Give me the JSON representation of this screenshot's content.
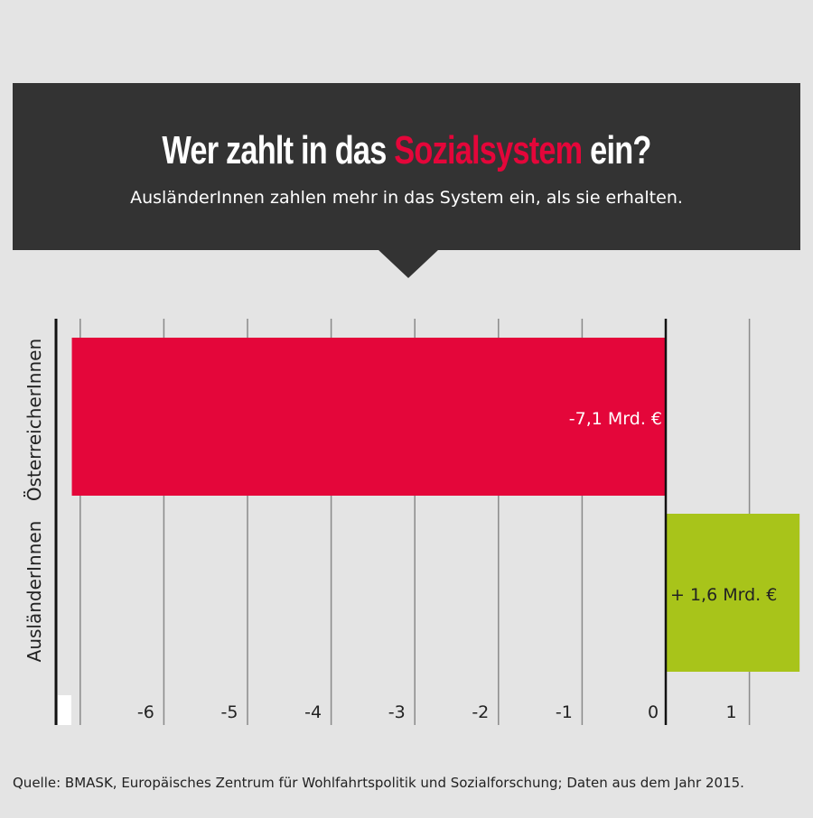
{
  "header": {
    "title_part1": "Wer zahlt in das ",
    "title_highlight": "Sozialsystem",
    "title_part2": " ein?",
    "subtitle": "AusländerInnen zahlen mehr in das System ein, als sie erhalten."
  },
  "chart_data": {
    "type": "bar",
    "orientation": "horizontal",
    "categories": [
      "ÖsterreicherInnen",
      "AusländerInnen"
    ],
    "values": [
      -7.1,
      1.6
    ],
    "value_labels": [
      "-7,1 Mrd. €",
      "+ 1,6 Mrd. €"
    ],
    "colors": [
      "#e4063a",
      "#a8c41a"
    ],
    "xlim": [
      -7.1,
      1.3
    ],
    "x_ticks": [
      -6,
      -5,
      -4,
      -3,
      -2,
      -1,
      0,
      1
    ],
    "grid": true
  },
  "source": "Quelle: BMASK, Europäisches Zentrum für Wohlfahrtspolitik und Sozialforschung; Daten aus dem Jahr 2015."
}
